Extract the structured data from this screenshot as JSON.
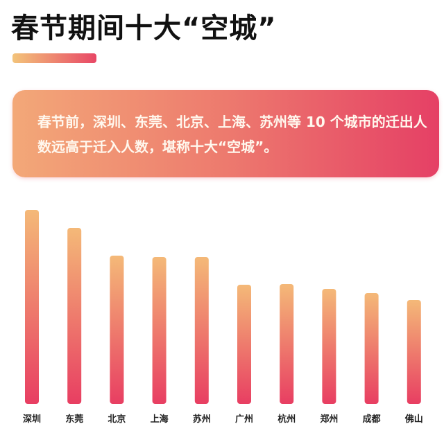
{
  "title": "春节期间十大“空城”",
  "summary": "春节前，深圳、东莞、北京、上海、苏州等 10 个城市的迁出人数远高于迁入人数，堪称十大“空城”。",
  "colors": {
    "bar_top": "#f4b978",
    "bar_bottom": "#e83e62",
    "title": "#111111"
  },
  "chart_data": {
    "type": "bar",
    "title": "春节期间十大“空城”",
    "categories": [
      "深圳",
      "东莞",
      "北京",
      "上海",
      "苏州",
      "广州",
      "杭州",
      "郑州",
      "成都",
      "佛山"
    ],
    "values": [
      280,
      254,
      214,
      212,
      212,
      172,
      173,
      166,
      160,
      150
    ],
    "value_note_axis": "none",
    "grid": false,
    "ylim": [
      0,
      280
    ]
  }
}
